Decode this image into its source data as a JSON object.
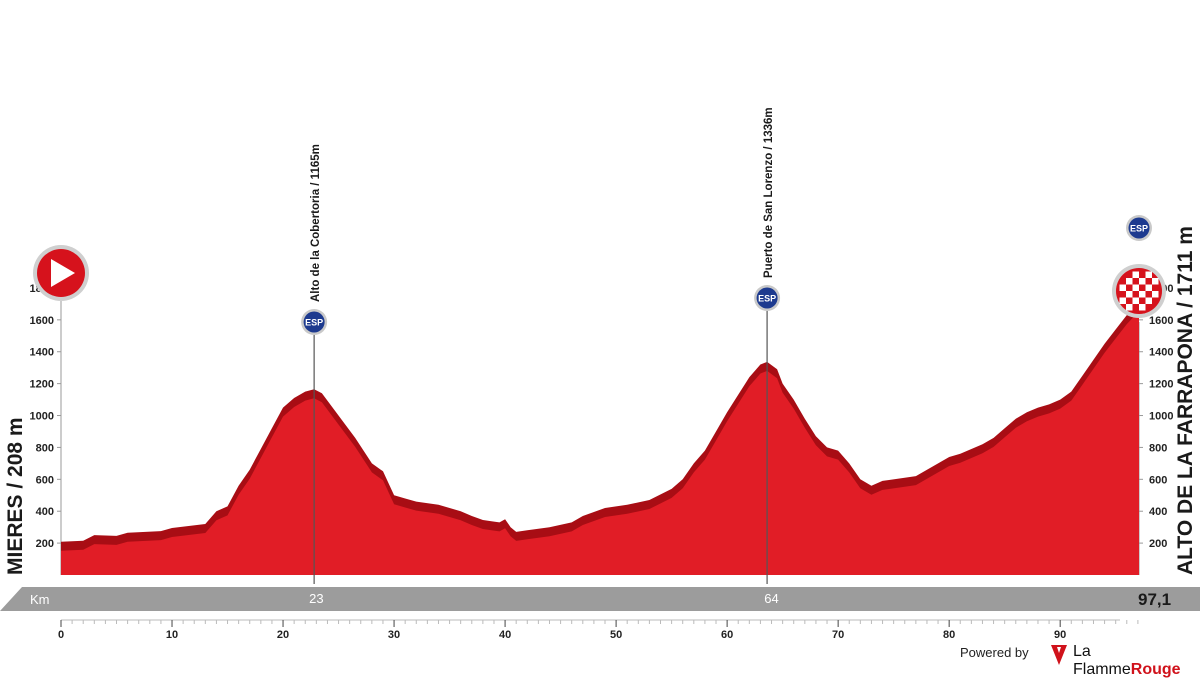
{
  "chart_data": {
    "type": "area",
    "title": "",
    "xlabel": "Km",
    "ylabel": "",
    "xlim": [
      0,
      97.1
    ],
    "ylim": [
      0,
      1900
    ],
    "x_ticks": [
      0,
      10,
      20,
      30,
      40,
      50,
      60,
      70,
      80,
      90
    ],
    "y_ticks": [
      200,
      400,
      600,
      800,
      1000,
      1200,
      1400,
      1600,
      1800
    ],
    "start_label": "MIERES / 208 m",
    "finish_label": "ALTO DE LA FARRAPONA / 1711 m",
    "distance_total": "97,1",
    "km_marker_label": "Km",
    "km_marks": [
      {
        "km": 23,
        "label": "23"
      },
      {
        "km": 64,
        "label": "64"
      }
    ],
    "climbs": [
      {
        "km": 22.8,
        "elevation": 1165,
        "label": "Alto de la Cobertoria / 1165m",
        "badge": "ESP"
      },
      {
        "km": 63.6,
        "elevation": 1336,
        "label": "Puerto de San Lorenzo / 1336m",
        "badge": "ESP"
      },
      {
        "km": 97.1,
        "elevation": 1711,
        "badge": "ESP"
      }
    ],
    "series": [
      {
        "values": [
          [
            0,
            208
          ],
          [
            2,
            215
          ],
          [
            3,
            250
          ],
          [
            5,
            245
          ],
          [
            6,
            265
          ],
          [
            9,
            275
          ],
          [
            10,
            295
          ],
          [
            13,
            320
          ],
          [
            14,
            400
          ],
          [
            15,
            430
          ],
          [
            16,
            560
          ],
          [
            17,
            660
          ],
          [
            18,
            790
          ],
          [
            19,
            920
          ],
          [
            20,
            1050
          ],
          [
            21,
            1110
          ],
          [
            22,
            1150
          ],
          [
            22.8,
            1165
          ],
          [
            23.5,
            1140
          ],
          [
            25,
            1000
          ],
          [
            26.5,
            860
          ],
          [
            28,
            700
          ],
          [
            29,
            650
          ],
          [
            30,
            500
          ],
          [
            31,
            480
          ],
          [
            32,
            460
          ],
          [
            34,
            440
          ],
          [
            35,
            420
          ],
          [
            36,
            400
          ],
          [
            37,
            370
          ],
          [
            38,
            345
          ],
          [
            39,
            335
          ],
          [
            39.5,
            330
          ],
          [
            40,
            350
          ],
          [
            40.5,
            300
          ],
          [
            41,
            270
          ],
          [
            42,
            280
          ],
          [
            44,
            300
          ],
          [
            46,
            330
          ],
          [
            47,
            370
          ],
          [
            48,
            395
          ],
          [
            49,
            420
          ],
          [
            51,
            440
          ],
          [
            53,
            470
          ],
          [
            55,
            540
          ],
          [
            56,
            600
          ],
          [
            57,
            700
          ],
          [
            58,
            780
          ],
          [
            59,
            900
          ],
          [
            60,
            1020
          ],
          [
            61,
            1130
          ],
          [
            62,
            1240
          ],
          [
            63,
            1320
          ],
          [
            63.6,
            1336
          ],
          [
            64.5,
            1290
          ],
          [
            65,
            1200
          ],
          [
            66,
            1100
          ],
          [
            67,
            980
          ],
          [
            68,
            870
          ],
          [
            69,
            800
          ],
          [
            70,
            780
          ],
          [
            71,
            700
          ],
          [
            72,
            600
          ],
          [
            73,
            560
          ],
          [
            74,
            590
          ],
          [
            76,
            610
          ],
          [
            77,
            620
          ],
          [
            78,
            660
          ],
          [
            79,
            700
          ],
          [
            80,
            740
          ],
          [
            81,
            760
          ],
          [
            82,
            790
          ],
          [
            83,
            820
          ],
          [
            84,
            860
          ],
          [
            85,
            920
          ],
          [
            86,
            980
          ],
          [
            87,
            1020
          ],
          [
            88,
            1050
          ],
          [
            89,
            1070
          ],
          [
            90,
            1100
          ],
          [
            91,
            1150
          ],
          [
            92,
            1250
          ],
          [
            93,
            1350
          ],
          [
            94,
            1450
          ],
          [
            95,
            1540
          ],
          [
            96,
            1630
          ],
          [
            97.1,
            1711
          ]
        ]
      }
    ]
  },
  "footer": {
    "powered": "Powered by",
    "brand_a": "La Flamme",
    "brand_b": "Rouge"
  }
}
